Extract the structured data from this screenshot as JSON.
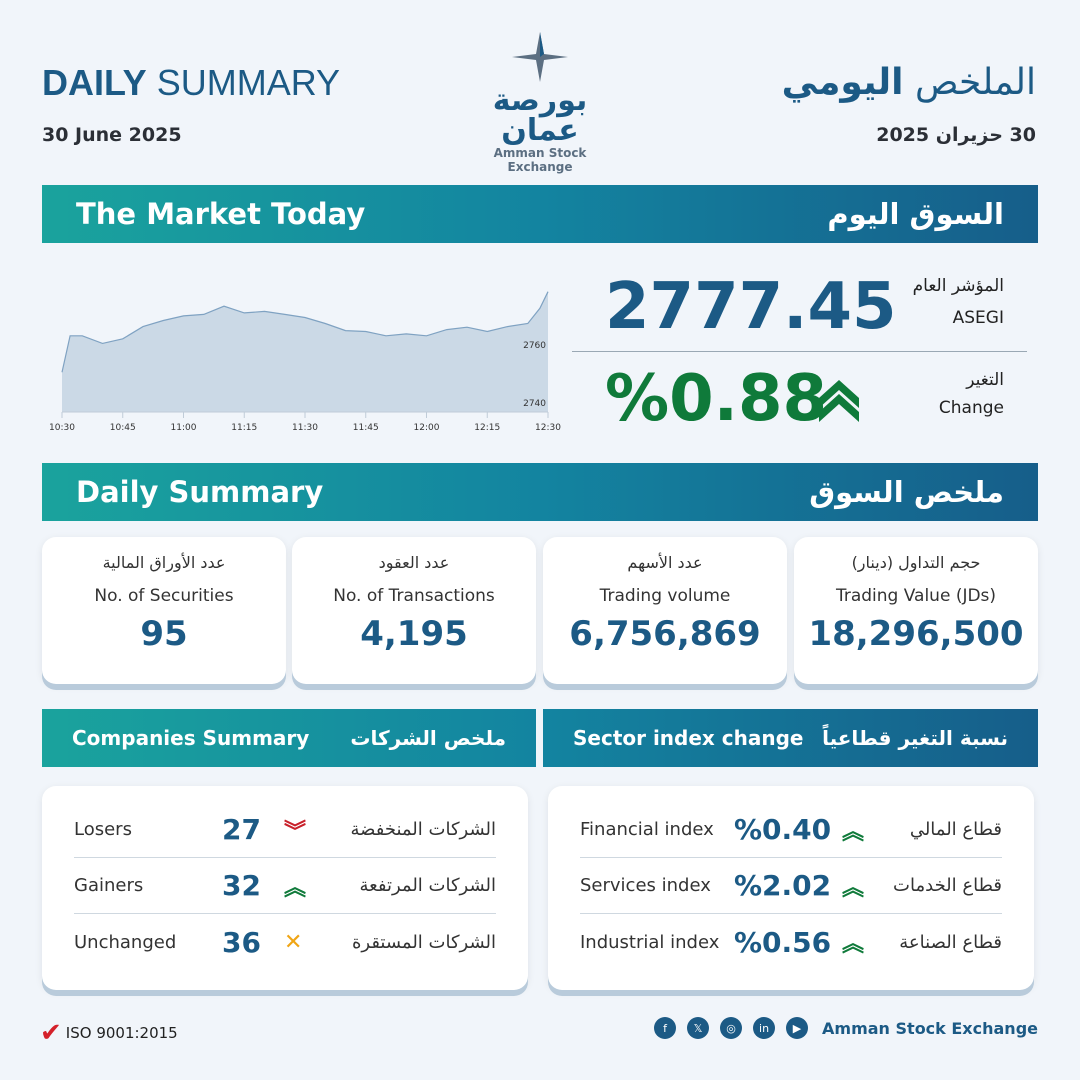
{
  "header": {
    "title_bold": "DAILY",
    "title_rest": " SUMMARY",
    "date_en": "30 June 2025",
    "title_ar_1": "الملخص ",
    "title_ar_2": "اليومي",
    "date_ar": "30 حزيران 2025",
    "logo_ar": "بورصة عمان",
    "logo_en": "Amman Stock Exchange"
  },
  "market": {
    "band_en": "The Market Today",
    "band_ar": "السوق اليوم",
    "index_label_ar": "المؤشر العام",
    "index_label_en": "ASEGI",
    "index_value": "2777.45",
    "change_label_ar": "التغير",
    "change_label_en": "Change",
    "change_value": "%0.88",
    "change_direction": "up",
    "up_color": "#0f7a3a"
  },
  "chart_data": {
    "type": "area",
    "x": [
      "10:30",
      "10:32",
      "10:35",
      "10:40",
      "10:45",
      "10:50",
      "10:55",
      "11:00",
      "11:05",
      "11:10",
      "11:15",
      "11:20",
      "11:25",
      "11:30",
      "11:35",
      "11:40",
      "11:45",
      "11:50",
      "11:55",
      "12:00",
      "12:05",
      "12:10",
      "12:15",
      "12:20",
      "12:25",
      "12:28",
      "12:30"
    ],
    "values": [
      2751,
      2763,
      2763,
      2760.5,
      2762,
      2766,
      2768,
      2769.5,
      2770,
      2772.7,
      2770.5,
      2771,
      2770,
      2769,
      2767,
      2764.7,
      2764.4,
      2763,
      2763.6,
      2763,
      2765,
      2765.8,
      2764.4,
      2766,
      2767,
      2772,
      2777.45
    ],
    "xticks": [
      "10:30",
      "10:45",
      "11:00",
      "11:15",
      "11:30",
      "11:45",
      "12:00",
      "12:15",
      "12:30"
    ],
    "yticks": [
      "2760",
      "2740"
    ],
    "ylim": [
      2738,
      2778
    ]
  },
  "summary": {
    "band_en": "Daily Summary",
    "band_ar": "ملخص السوق",
    "cards": [
      {
        "ar": "عدد الأوراق المالية",
        "en": "No. of Securities",
        "value": "95"
      },
      {
        "ar": "عدد العقود",
        "en": "No. of Transactions",
        "value": "4,195"
      },
      {
        "ar": "عدد الأسهم",
        "en": "Trading volume",
        "value": "6,756,869"
      },
      {
        "ar": "حجم التداول (دينار)",
        "en": "Trading Value (JDs)",
        "value": "18,296,500"
      }
    ]
  },
  "companies": {
    "title_en": "Companies Summary",
    "title_ar": "ملخص الشركات",
    "rows": [
      {
        "en": "Losers",
        "value": "27",
        "ar": "الشركات المنخفضة",
        "icon": "double-chevron-down",
        "color": "#c8202a"
      },
      {
        "en": "Gainers",
        "value": "32",
        "ar": "الشركات المرتفعة",
        "icon": "double-chevron-up",
        "color": "#0f7a3a"
      },
      {
        "en": "Unchanged",
        "value": "36",
        "ar": "الشركات المستقرة",
        "icon": "chevron-converge",
        "color": "#f0a515"
      }
    ]
  },
  "sectors": {
    "title_en": "Sector index change",
    "title_ar": "نسبة التغير قطاعياً",
    "rows": [
      {
        "en": "Financial index",
        "value": "%0.40",
        "ar": "قطاع المالي",
        "icon": "double-chevron-up"
      },
      {
        "en": "Services index",
        "value": "%2.02",
        "ar": "قطاع الخدمات",
        "icon": "double-chevron-up"
      },
      {
        "en": "Industrial index",
        "value": "%0.56",
        "ar": "قطاع الصناعة",
        "icon": "double-chevron-up"
      }
    ]
  },
  "footer": {
    "iso": "ISO 9001:2015",
    "brand": "Amman Stock Exchange",
    "social": [
      "facebook",
      "x",
      "instagram",
      "linkedin",
      "youtube"
    ]
  }
}
